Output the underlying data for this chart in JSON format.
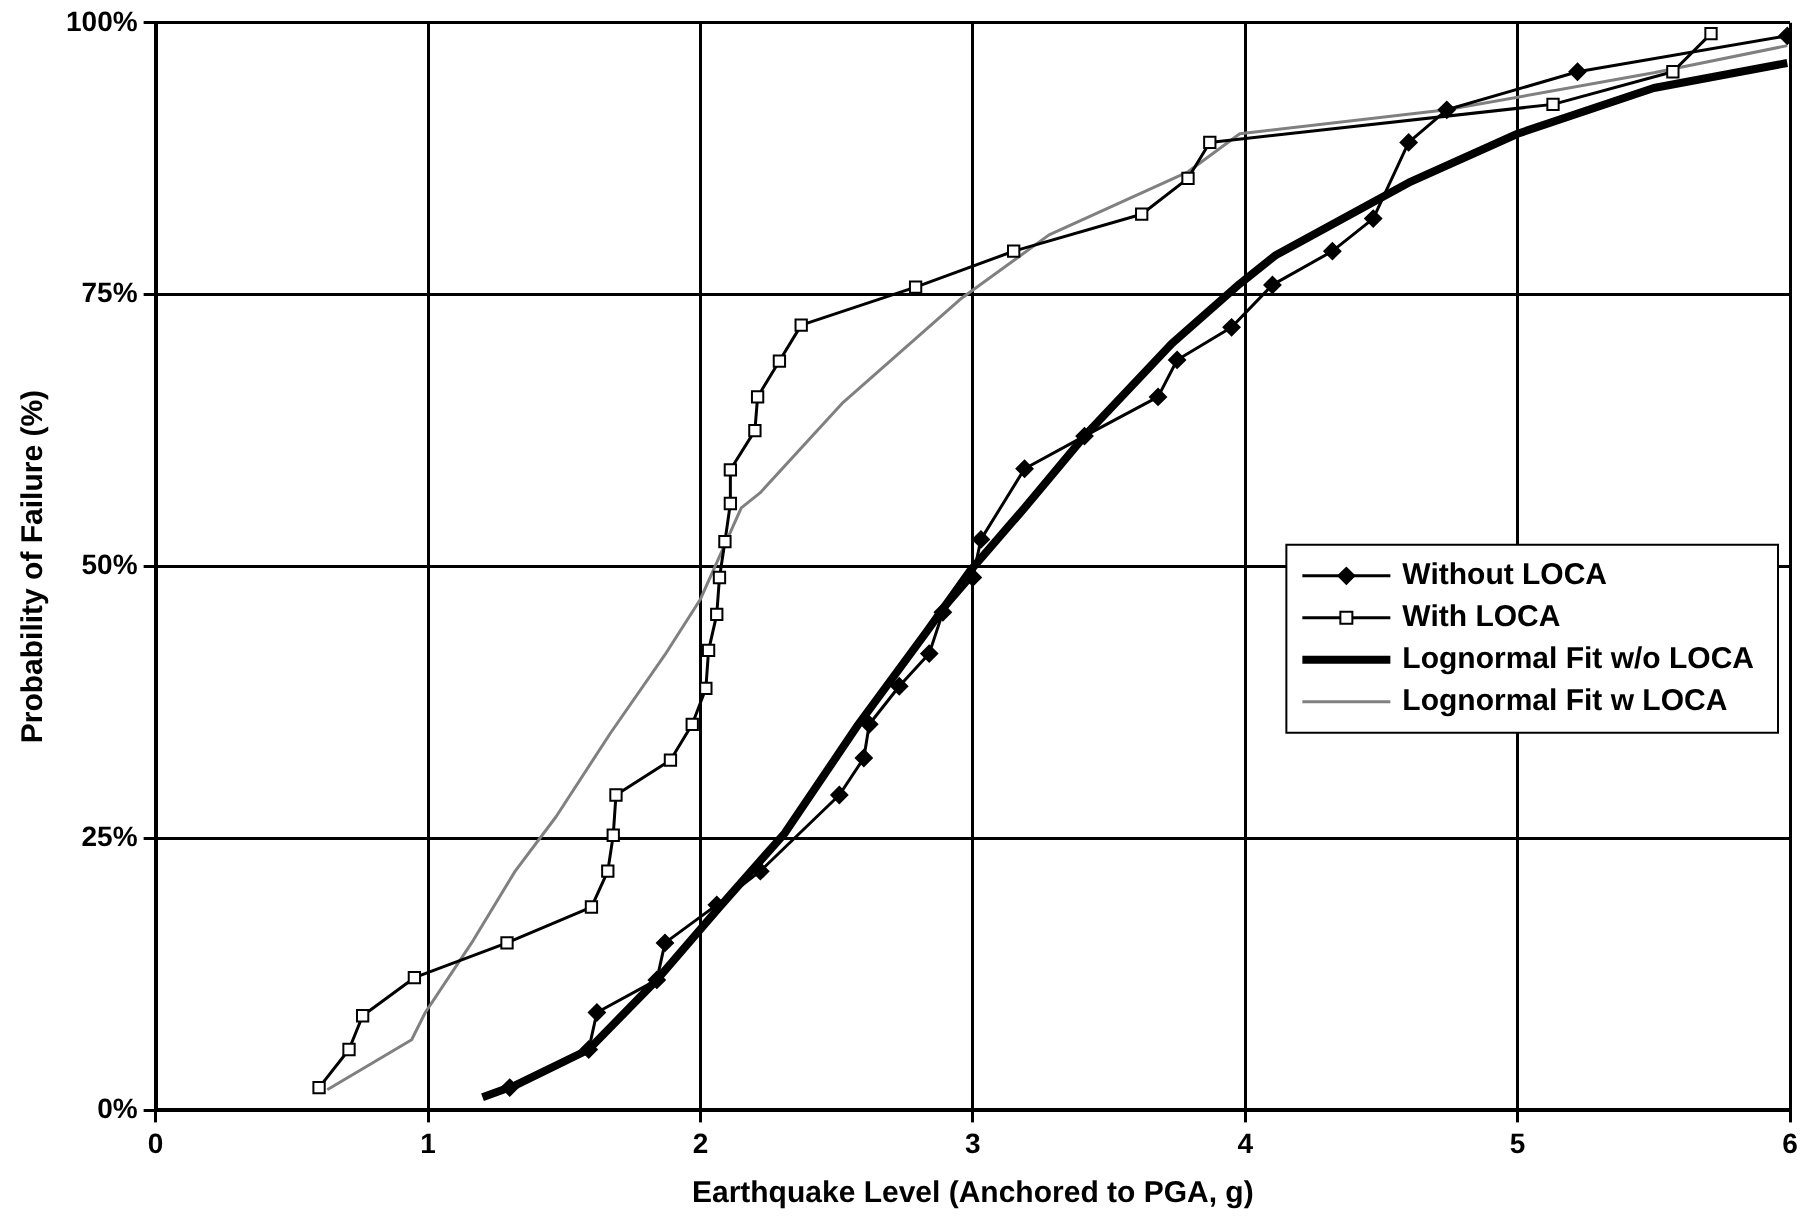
{
  "chart_data": {
    "type": "line",
    "xlabel": "Earthquake Level (Anchored to PGA, g)",
    "ylabel": "Probability of Failure (%)",
    "xlim": [
      0,
      6
    ],
    "xticks": [
      0,
      1,
      2,
      3,
      4,
      5,
      6
    ],
    "ylim": [
      0,
      100
    ],
    "yticks": [
      {
        "value": 0,
        "label": "0%"
      },
      {
        "value": 25,
        "label": "25%"
      },
      {
        "value": 50,
        "label": "50%"
      },
      {
        "value": 75,
        "label": "75%"
      },
      {
        "value": 100,
        "label": "100%"
      }
    ],
    "grid": true,
    "legend": "center right",
    "series": [
      {
        "name": "Without LOCA",
        "color": "#000000",
        "marker": "diamond",
        "x": [
          1.3,
          1.59,
          1.62,
          1.84,
          1.87,
          2.06,
          2.22,
          2.51,
          2.6,
          2.62,
          2.73,
          2.84,
          2.89,
          3.0,
          3.03,
          3.19,
          3.41,
          3.68,
          3.75,
          3.95,
          4.1,
          4.32,
          4.47,
          4.6,
          4.74,
          5.22,
          5.99
        ],
        "values": [
          2.1,
          5.6,
          9,
          12,
          15.4,
          18.9,
          22,
          29,
          32.4,
          35.5,
          39,
          42,
          45.8,
          49,
          52.5,
          59,
          62,
          65.6,
          69,
          72,
          75.9,
          79,
          82,
          89,
          92,
          95.5,
          98.8
        ]
      },
      {
        "name": "With LOCA",
        "color": "#000000",
        "marker": "square",
        "x": [
          0.6,
          0.71,
          0.76,
          0.95,
          1.29,
          1.6,
          1.66,
          1.68,
          1.69,
          1.89,
          1.97,
          2.02,
          2.03,
          2.06,
          2.07,
          2.09,
          2.11,
          2.11,
          2.2,
          2.21,
          2.29,
          2.37,
          2.79,
          3.15,
          3.62,
          3.79,
          3.87,
          5.13,
          5.57,
          5.71
        ],
        "values": [
          2.1,
          5.6,
          8.7,
          12.2,
          15.4,
          18.7,
          22,
          25.3,
          29,
          32.2,
          35.5,
          38.8,
          42.3,
          45.6,
          49,
          52.3,
          55.8,
          58.9,
          62.5,
          65.6,
          68.9,
          72.2,
          75.7,
          79,
          82.4,
          85.7,
          89,
          92.5,
          95.5,
          99
        ]
      },
      {
        "name": "Lognormal Fit w/o LOCA",
        "color": "#000000",
        "marker": "none",
        "x": [
          1.2,
          1.32,
          1.59,
          1.84,
          2.07,
          2.31,
          2.58,
          2.83,
          2.99,
          3.19,
          3.41,
          3.73,
          3.98,
          4.11,
          4.6,
          5.0,
          5.5,
          5.99
        ],
        "values": [
          1.2,
          2.3,
          5.6,
          12,
          18.7,
          25.5,
          35.5,
          44,
          49.6,
          55.4,
          62,
          70.5,
          76,
          78.6,
          85.3,
          89.8,
          94,
          96.3
        ]
      },
      {
        "name": "Lognormal Fit w LOCA",
        "color": "#808080",
        "marker": "none",
        "x": [
          0.63,
          0.94,
          0.99,
          1.16,
          1.32,
          1.47,
          1.67,
          1.87,
          2.0,
          2.15,
          2.22,
          2.52,
          2.96,
          3.28,
          3.79,
          3.98,
          4.74,
          5.5,
          5.99
        ],
        "values": [
          1.9,
          6.5,
          9,
          15.4,
          22,
          27,
          34.7,
          41.9,
          47,
          55.4,
          56.8,
          65,
          74.7,
          80.5,
          86.3,
          89.8,
          92,
          95.4,
          97.9
        ]
      }
    ]
  }
}
